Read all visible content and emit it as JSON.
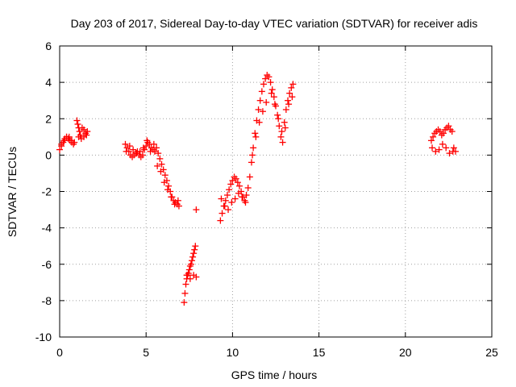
{
  "chart_data": {
    "type": "scatter",
    "title": "Day 203 of 2017, Sidereal Day-to-day VTEC variation (SDTVAR) for receiver adis",
    "xlabel": "GPS time / hours",
    "ylabel": "SDTVAR / TECUs",
    "xlim": [
      0,
      25
    ],
    "ylim": [
      -10,
      6
    ],
    "xticks": [
      "0",
      "5",
      "10",
      "15",
      "20",
      "25"
    ],
    "yticks": [
      "-10",
      "-8",
      "-6",
      "-4",
      "-2",
      "0",
      "2",
      "4",
      "6"
    ],
    "grid": true,
    "marker": "+",
    "color": "#ff0000",
    "series": [
      {
        "x": [
          0.0,
          0.1,
          0.2,
          0.3,
          0.4,
          0.5,
          0.6,
          0.7,
          0.8,
          0.1,
          0.25,
          0.4,
          0.55,
          0.7,
          0.85,
          1.0,
          1.05,
          1.1,
          1.15,
          1.2,
          1.3,
          1.4,
          1.5,
          1.6,
          1.1,
          1.25,
          1.4,
          1.55,
          3.8,
          3.9,
          4.0,
          4.1,
          4.2,
          4.3,
          4.4,
          4.5,
          4.6,
          4.7,
          4.8,
          4.9,
          5.0,
          5.1,
          5.2,
          5.3,
          5.4,
          5.5,
          3.85,
          4.05,
          4.25,
          4.45,
          4.65,
          4.85,
          5.05,
          5.25,
          5.45,
          5.6,
          5.7,
          5.8,
          5.9,
          6.0,
          6.1,
          6.2,
          6.3,
          6.4,
          6.5,
          6.6,
          6.7,
          6.8,
          6.9,
          5.65,
          5.85,
          6.05,
          6.25,
          6.45,
          6.65,
          6.85,
          7.9,
          7.2,
          7.25,
          7.3,
          7.35,
          7.4,
          7.45,
          7.5,
          7.55,
          7.6,
          7.65,
          7.7,
          7.75,
          7.8,
          7.85,
          7.9,
          7.35,
          7.55,
          7.75,
          9.3,
          9.4,
          9.5,
          9.6,
          9.7,
          9.8,
          9.9,
          10.0,
          10.1,
          10.2,
          10.3,
          10.4,
          10.5,
          10.6,
          10.7,
          10.8,
          9.35,
          9.55,
          9.75,
          9.95,
          10.15,
          10.35,
          10.55,
          10.75,
          10.9,
          11.0,
          11.1,
          11.2,
          11.3,
          11.4,
          11.5,
          11.6,
          11.7,
          11.8,
          11.9,
          12.0,
          12.1,
          11.15,
          11.35,
          11.55,
          11.75,
          11.95,
          12.2,
          12.3,
          12.4,
          12.5,
          12.6,
          12.7,
          12.8,
          12.9,
          13.0,
          13.1,
          13.2,
          13.3,
          13.4,
          13.5,
          12.25,
          12.45,
          12.65,
          12.85,
          13.05,
          13.25,
          13.45,
          21.5,
          21.6,
          21.7,
          21.8,
          21.9,
          22.0,
          22.1,
          22.2,
          22.3,
          22.4,
          22.5,
          22.6,
          22.7,
          22.8,
          22.9,
          21.55,
          21.75,
          21.95,
          22.15,
          22.35,
          22.55,
          22.75
        ],
        "y": [
          0.3,
          0.5,
          0.7,
          0.9,
          1.0,
          0.9,
          0.8,
          0.7,
          0.6,
          0.6,
          0.8,
          1.0,
          1.0,
          0.8,
          0.7,
          1.9,
          1.7,
          1.5,
          1.3,
          1.1,
          1.5,
          1.4,
          1.2,
          1.3,
          1.0,
          0.9,
          1.0,
          1.1,
          0.6,
          0.4,
          0.2,
          0.0,
          -0.1,
          0.0,
          0.1,
          0.2,
          0.0,
          -0.1,
          0.0,
          0.3,
          0.5,
          0.7,
          0.6,
          0.4,
          0.3,
          0.2,
          0.2,
          0.5,
          0.3,
          0.1,
          0.2,
          0.4,
          0.8,
          0.2,
          0.6,
          0.4,
          0.1,
          -0.2,
          -0.5,
          -0.8,
          -1.1,
          -1.4,
          -1.7,
          -2.0,
          -2.3,
          -2.5,
          -2.6,
          -2.7,
          -2.8,
          -0.6,
          -0.9,
          -1.5,
          -1.9,
          -2.3,
          -2.7,
          -2.5,
          -3.0,
          -8.1,
          -7.6,
          -7.1,
          -6.8,
          -6.6,
          -6.5,
          -6.3,
          -6.1,
          -6.0,
          -5.8,
          -5.6,
          -5.4,
          -5.2,
          -5.0,
          -6.7,
          -6.6,
          -6.8,
          -6.6,
          -3.6,
          -3.2,
          -2.8,
          -2.5,
          -2.2,
          -1.9,
          -1.6,
          -1.4,
          -1.2,
          -1.3,
          -1.5,
          -1.7,
          -2.0,
          -2.3,
          -2.5,
          -2.2,
          -2.4,
          -2.8,
          -3.0,
          -2.6,
          -2.4,
          -2.1,
          -2.3,
          -2.6,
          -1.8,
          -1.2,
          -0.4,
          0.4,
          1.2,
          1.9,
          2.5,
          3.0,
          3.5,
          3.9,
          4.2,
          4.4,
          4.3,
          0.0,
          1.0,
          1.8,
          2.4,
          2.9,
          4.0,
          3.6,
          3.2,
          2.7,
          2.2,
          1.6,
          1.0,
          0.7,
          1.8,
          2.5,
          3.0,
          3.4,
          3.7,
          3.9,
          3.4,
          2.8,
          2.0,
          1.3,
          1.5,
          2.8,
          3.2,
          0.8,
          1.0,
          1.2,
          1.3,
          1.4,
          1.3,
          1.1,
          1.2,
          1.4,
          1.5,
          1.6,
          1.4,
          1.3,
          0.4,
          0.2,
          0.4,
          0.2,
          0.3,
          0.6,
          0.4,
          0.1,
          0.2
        ]
      }
    ]
  }
}
